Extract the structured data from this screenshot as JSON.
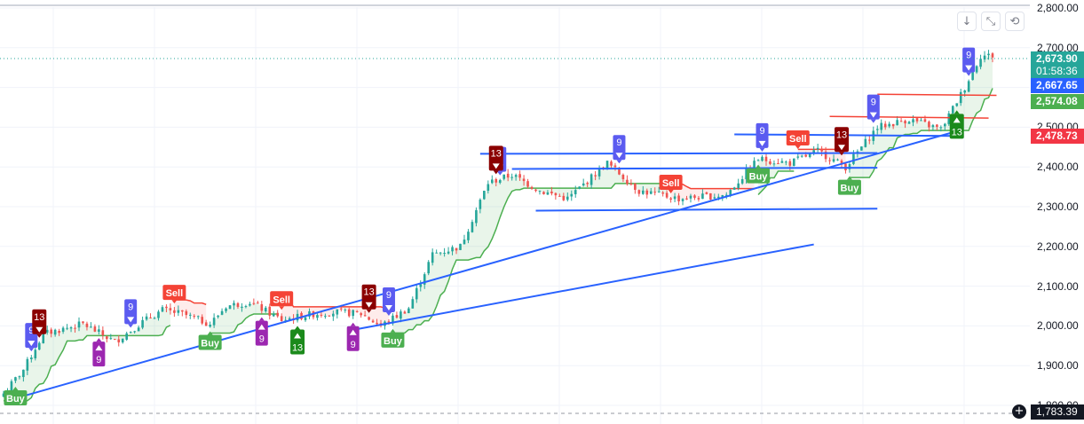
{
  "toolbar": {
    "download_icon": "down-arrow-icon",
    "collapse_icon": "collapse-icon",
    "reset_icon": "reset-icon",
    "download_glyph": "↓",
    "collapse_glyph": "⤡",
    "reset_glyph": "⟲"
  },
  "colors": {
    "up": "#26a69a",
    "down": "#ef5350",
    "trend_line": "#2962ff",
    "stop_green": "#4caf50",
    "stop_red": "#f44336",
    "td_up": "#9c27b0",
    "td_down": "#5b5bf0",
    "buy": "#4caf50",
    "sell": "#f44336"
  },
  "price_axis": {
    "ticks": [
      "2,800.00",
      "2,700.00",
      "2,600.00",
      "2,500.00",
      "2,400.00",
      "2,300.00",
      "2,200.00",
      "2,100.00",
      "2,000.00",
      "1,900.00",
      "1,800.00"
    ],
    "last_price": "2,673.90",
    "countdown": "01:58:36",
    "blue_label": "2,667.65",
    "green_label": "2,574.08",
    "red_label": "2,478.73",
    "crosshair_price": "1,783.39",
    "crosshair_icon": "plus-circle-icon"
  },
  "chart_data": {
    "type": "candlestick",
    "ylim": [
      1770,
      2810
    ],
    "bars": 250,
    "anchors": [
      [
        0,
        1830
      ],
      [
        5,
        1890
      ],
      [
        10,
        1980
      ],
      [
        20,
        2005
      ],
      [
        28,
        1960
      ],
      [
        35,
        2010
      ],
      [
        40,
        2040
      ],
      [
        45,
        2030
      ],
      [
        52,
        2005
      ],
      [
        56,
        2050
      ],
      [
        62,
        2060
      ],
      [
        70,
        2015
      ],
      [
        78,
        2030
      ],
      [
        84,
        2035
      ],
      [
        90,
        2030
      ],
      [
        95,
        2000
      ],
      [
        102,
        2045
      ],
      [
        108,
        2180
      ],
      [
        115,
        2200
      ],
      [
        122,
        2360
      ],
      [
        128,
        2380
      ],
      [
        135,
        2340
      ],
      [
        142,
        2320
      ],
      [
        152,
        2410
      ],
      [
        160,
        2340
      ],
      [
        170,
        2320
      ],
      [
        182,
        2330
      ],
      [
        190,
        2420
      ],
      [
        198,
        2410
      ],
      [
        205,
        2440
      ],
      [
        212,
        2400
      ],
      [
        220,
        2500
      ],
      [
        228,
        2520
      ],
      [
        236,
        2495
      ],
      [
        242,
        2600
      ],
      [
        246,
        2680
      ],
      [
        249,
        2680
      ]
    ],
    "buy_signals": [
      {
        "bar": 3,
        "label": "Buy"
      },
      {
        "bar": 52,
        "label": "Buy"
      },
      {
        "bar": 98,
        "label": "Buy"
      },
      {
        "bar": 190,
        "label": "Buy"
      },
      {
        "bar": 213,
        "label": "Buy"
      }
    ],
    "sell_signals": [
      {
        "bar": 43,
        "label": "Sell"
      },
      {
        "bar": 70,
        "label": "Sell"
      },
      {
        "bar": 168,
        "label": "Sell"
      },
      {
        "bar": 200,
        "label": "Sell"
      }
    ],
    "td_setup_up": [
      {
        "bar": 24,
        "label": "9"
      },
      {
        "bar": 65,
        "label": "9"
      },
      {
        "bar": 88,
        "label": "9"
      }
    ],
    "td_setup_down": [
      {
        "bar": 7,
        "label": "9"
      },
      {
        "bar": 32,
        "label": "9"
      },
      {
        "bar": 97,
        "label": "9"
      },
      {
        "bar": 125,
        "label": "9"
      },
      {
        "bar": 155,
        "label": "9"
      },
      {
        "bar": 191,
        "label": "9"
      },
      {
        "bar": 219,
        "label": "9"
      },
      {
        "bar": 243,
        "label": "9"
      }
    ],
    "td_count_13_down": [
      {
        "bar": 9,
        "label": "13"
      },
      {
        "bar": 92,
        "label": "13"
      },
      {
        "bar": 124,
        "label": "13"
      },
      {
        "bar": 211,
        "label": "13"
      }
    ],
    "td_count_13_up": [
      {
        "bar": 74,
        "label": "13"
      },
      {
        "bar": 240,
        "label": "13"
      }
    ],
    "trendlines": [
      {
        "from": [
          2,
          1815
        ],
        "to": [
          240,
          2490
        ]
      },
      {
        "from": [
          88,
          1990
        ],
        "to": [
          204,
          2205
        ]
      },
      {
        "from": [
          120,
          2433
        ],
        "to": [
          220,
          2435
        ]
      },
      {
        "from": [
          128,
          2395
        ],
        "to": [
          220,
          2398
        ]
      },
      {
        "from": [
          134,
          2290
        ],
        "to": [
          220,
          2295
        ]
      },
      {
        "from": [
          184,
          2482
        ],
        "to": [
          240,
          2478
        ]
      }
    ],
    "levels": [
      {
        "from": [
          220,
          2583
        ],
        "to": [
          250,
          2580
        ],
        "color": "red"
      },
      {
        "from": [
          208,
          2527
        ],
        "to": [
          248,
          2523
        ],
        "color": "red"
      }
    ]
  }
}
